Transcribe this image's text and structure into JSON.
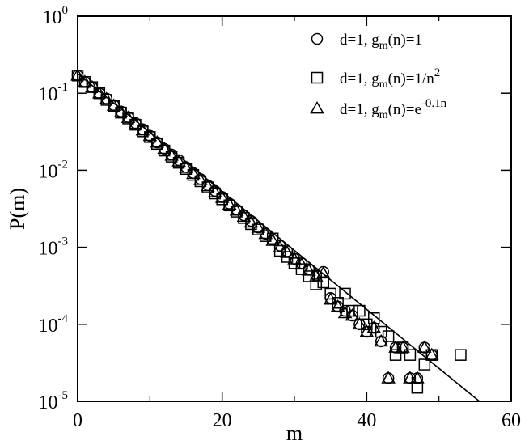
{
  "chart_data": {
    "type": "scatter",
    "xlabel": "m",
    "ylabel": "P(m)",
    "xlim": [
      0,
      60
    ],
    "ylim": [
      1e-05,
      1
    ],
    "yscale": "log",
    "x_ticks": [
      0,
      20,
      40,
      60
    ],
    "y_ticks": [
      {
        "value": 1,
        "base": "10",
        "exp": "0"
      },
      {
        "value": 0.1,
        "base": "10",
        "exp": "-1"
      },
      {
        "value": 0.01,
        "base": "10",
        "exp": "-2"
      },
      {
        "value": 0.001,
        "base": "10",
        "exp": "-3"
      },
      {
        "value": 0.0001,
        "base": "10",
        "exp": "-4"
      },
      {
        "value": 1e-05,
        "base": "10",
        "exp": "-5"
      }
    ],
    "legend": {
      "placement": "top-right",
      "entries": [
        {
          "marker": "circle",
          "label": "d=1, g",
          "sub": "m",
          "tail": "(n)=1",
          "sup": ""
        },
        {
          "marker": "square",
          "label": "d=1, g",
          "sub": "m",
          "tail": "(n)=1/n",
          "sup": "2"
        },
        {
          "marker": "triangle",
          "label": "d=1, g",
          "sub": "m",
          "tail": "(n)=e",
          "sup": "-0.1n"
        }
      ]
    },
    "fit_line": {
      "x": [
        0,
        55.6
      ],
      "y": [
        0.18,
        1e-05
      ]
    },
    "series": [
      {
        "marker": "circle",
        "x": [
          0,
          1,
          2,
          3,
          4,
          5,
          6,
          7,
          8,
          9,
          10,
          11,
          12,
          13,
          14,
          15,
          16,
          17,
          18,
          19,
          20,
          21,
          22,
          23,
          24,
          25,
          26,
          27,
          28,
          29,
          30,
          31,
          32,
          33,
          34,
          35,
          36,
          37,
          38,
          39,
          40,
          41,
          42,
          43,
          44,
          45,
          46,
          47,
          48,
          49
        ],
        "y": [
          0.17,
          0.14,
          0.12,
          0.1,
          0.085,
          0.07,
          0.058,
          0.049,
          0.041,
          0.034,
          0.028,
          0.023,
          0.019,
          0.016,
          0.0135,
          0.011,
          0.0092,
          0.0077,
          0.0064,
          0.0054,
          0.0045,
          0.0037,
          0.0031,
          0.0026,
          0.0022,
          0.0018,
          0.0015,
          0.00125,
          0.00105,
          0.00089,
          0.00071,
          0.00062,
          0.00052,
          0.00043,
          0.00048,
          0.00022,
          0.00017,
          0.00015,
          0.00013,
          0.0001,
          8e-05,
          9e-05,
          6e-05,
          2e-05,
          5e-05,
          5e-05,
          2e-05,
          2e-05,
          5e-05,
          4e-05
        ]
      },
      {
        "marker": "square",
        "x": [
          0,
          1,
          2,
          3,
          4,
          5,
          6,
          7,
          8,
          9,
          10,
          11,
          12,
          13,
          14,
          15,
          16,
          17,
          18,
          19,
          20,
          21,
          22,
          23,
          24,
          25,
          26,
          27,
          28,
          29,
          30,
          31,
          32,
          33,
          34,
          35,
          36,
          37,
          38,
          39,
          40,
          41,
          42,
          43,
          44,
          45,
          46,
          47,
          48,
          49,
          53
        ],
        "y": [
          0.17,
          0.14,
          0.12,
          0.1,
          0.082,
          0.068,
          0.056,
          0.047,
          0.039,
          0.032,
          0.027,
          0.022,
          0.018,
          0.015,
          0.0125,
          0.0104,
          0.0087,
          0.0072,
          0.006,
          0.005,
          0.0042,
          0.0035,
          0.0029,
          0.0024,
          0.002,
          0.0017,
          0.0014,
          0.0013,
          0.0009,
          0.00075,
          0.00062,
          0.00052,
          0.00042,
          0.00033,
          0.00035,
          0.00025,
          0.00019,
          0.00025,
          0.00015,
          0.00015,
          0.0001,
          0.00012,
          8e-05,
          7e-05,
          4e-05,
          5e-05,
          4e-05,
          1.5e-05,
          3e-05,
          4e-05,
          4e-05
        ]
      },
      {
        "marker": "triangle",
        "x": [
          0,
          1,
          2,
          3,
          4,
          5,
          6,
          7,
          8,
          9,
          10,
          11,
          12,
          13,
          14,
          15,
          16,
          17,
          18,
          19,
          20,
          21,
          22,
          23,
          24,
          25,
          26,
          27,
          28,
          29,
          30,
          31,
          32,
          33,
          34,
          35,
          36,
          37,
          38,
          39,
          40,
          41,
          42,
          43,
          44,
          45,
          46,
          47,
          48,
          49
        ],
        "y": [
          0.17,
          0.14,
          0.12,
          0.1,
          0.084,
          0.069,
          0.057,
          0.048,
          0.04,
          0.033,
          0.028,
          0.023,
          0.019,
          0.0155,
          0.013,
          0.0108,
          0.009,
          0.0075,
          0.0062,
          0.0052,
          0.0044,
          0.0036,
          0.003,
          0.0025,
          0.0021,
          0.0018,
          0.0015,
          0.00122,
          0.001,
          0.00085,
          0.0007,
          0.0006,
          0.0005,
          0.00042,
          0.00046,
          0.00021,
          0.00017,
          0.00014,
          0.00013,
          0.0001,
          8e-05,
          9e-05,
          6e-05,
          2e-05,
          5e-05,
          5e-05,
          2e-05,
          2e-05,
          5e-05,
          4e-05
        ]
      }
    ]
  }
}
